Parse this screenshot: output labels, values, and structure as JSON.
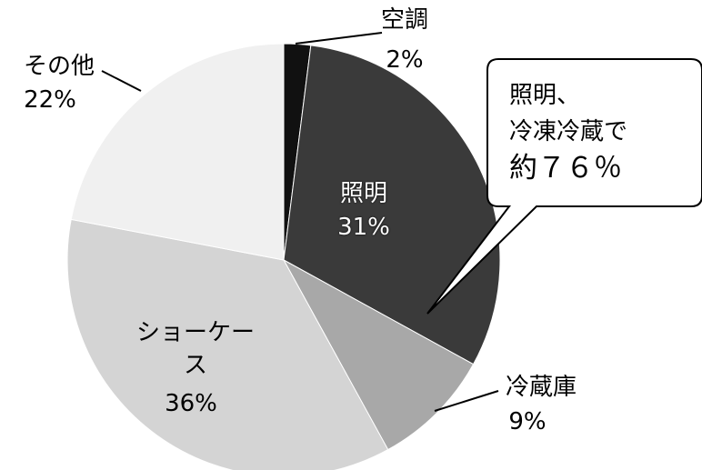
{
  "chart_data": {
    "type": "pie",
    "categories": [
      "空調",
      "照明",
      "冷蔵庫",
      "ショーケース",
      "その他"
    ],
    "values": [
      2,
      31,
      9,
      36,
      22
    ],
    "value_labels": [
      "2%",
      "31%",
      "9%",
      "36%",
      "22%"
    ],
    "colors": [
      "#111111",
      "#3a3a3a",
      "#a8a8a8",
      "#d4d4d4",
      "#f0f0f0"
    ],
    "annotation": [
      "照明、",
      "冷凍冷蔵で",
      "約７６％"
    ]
  }
}
